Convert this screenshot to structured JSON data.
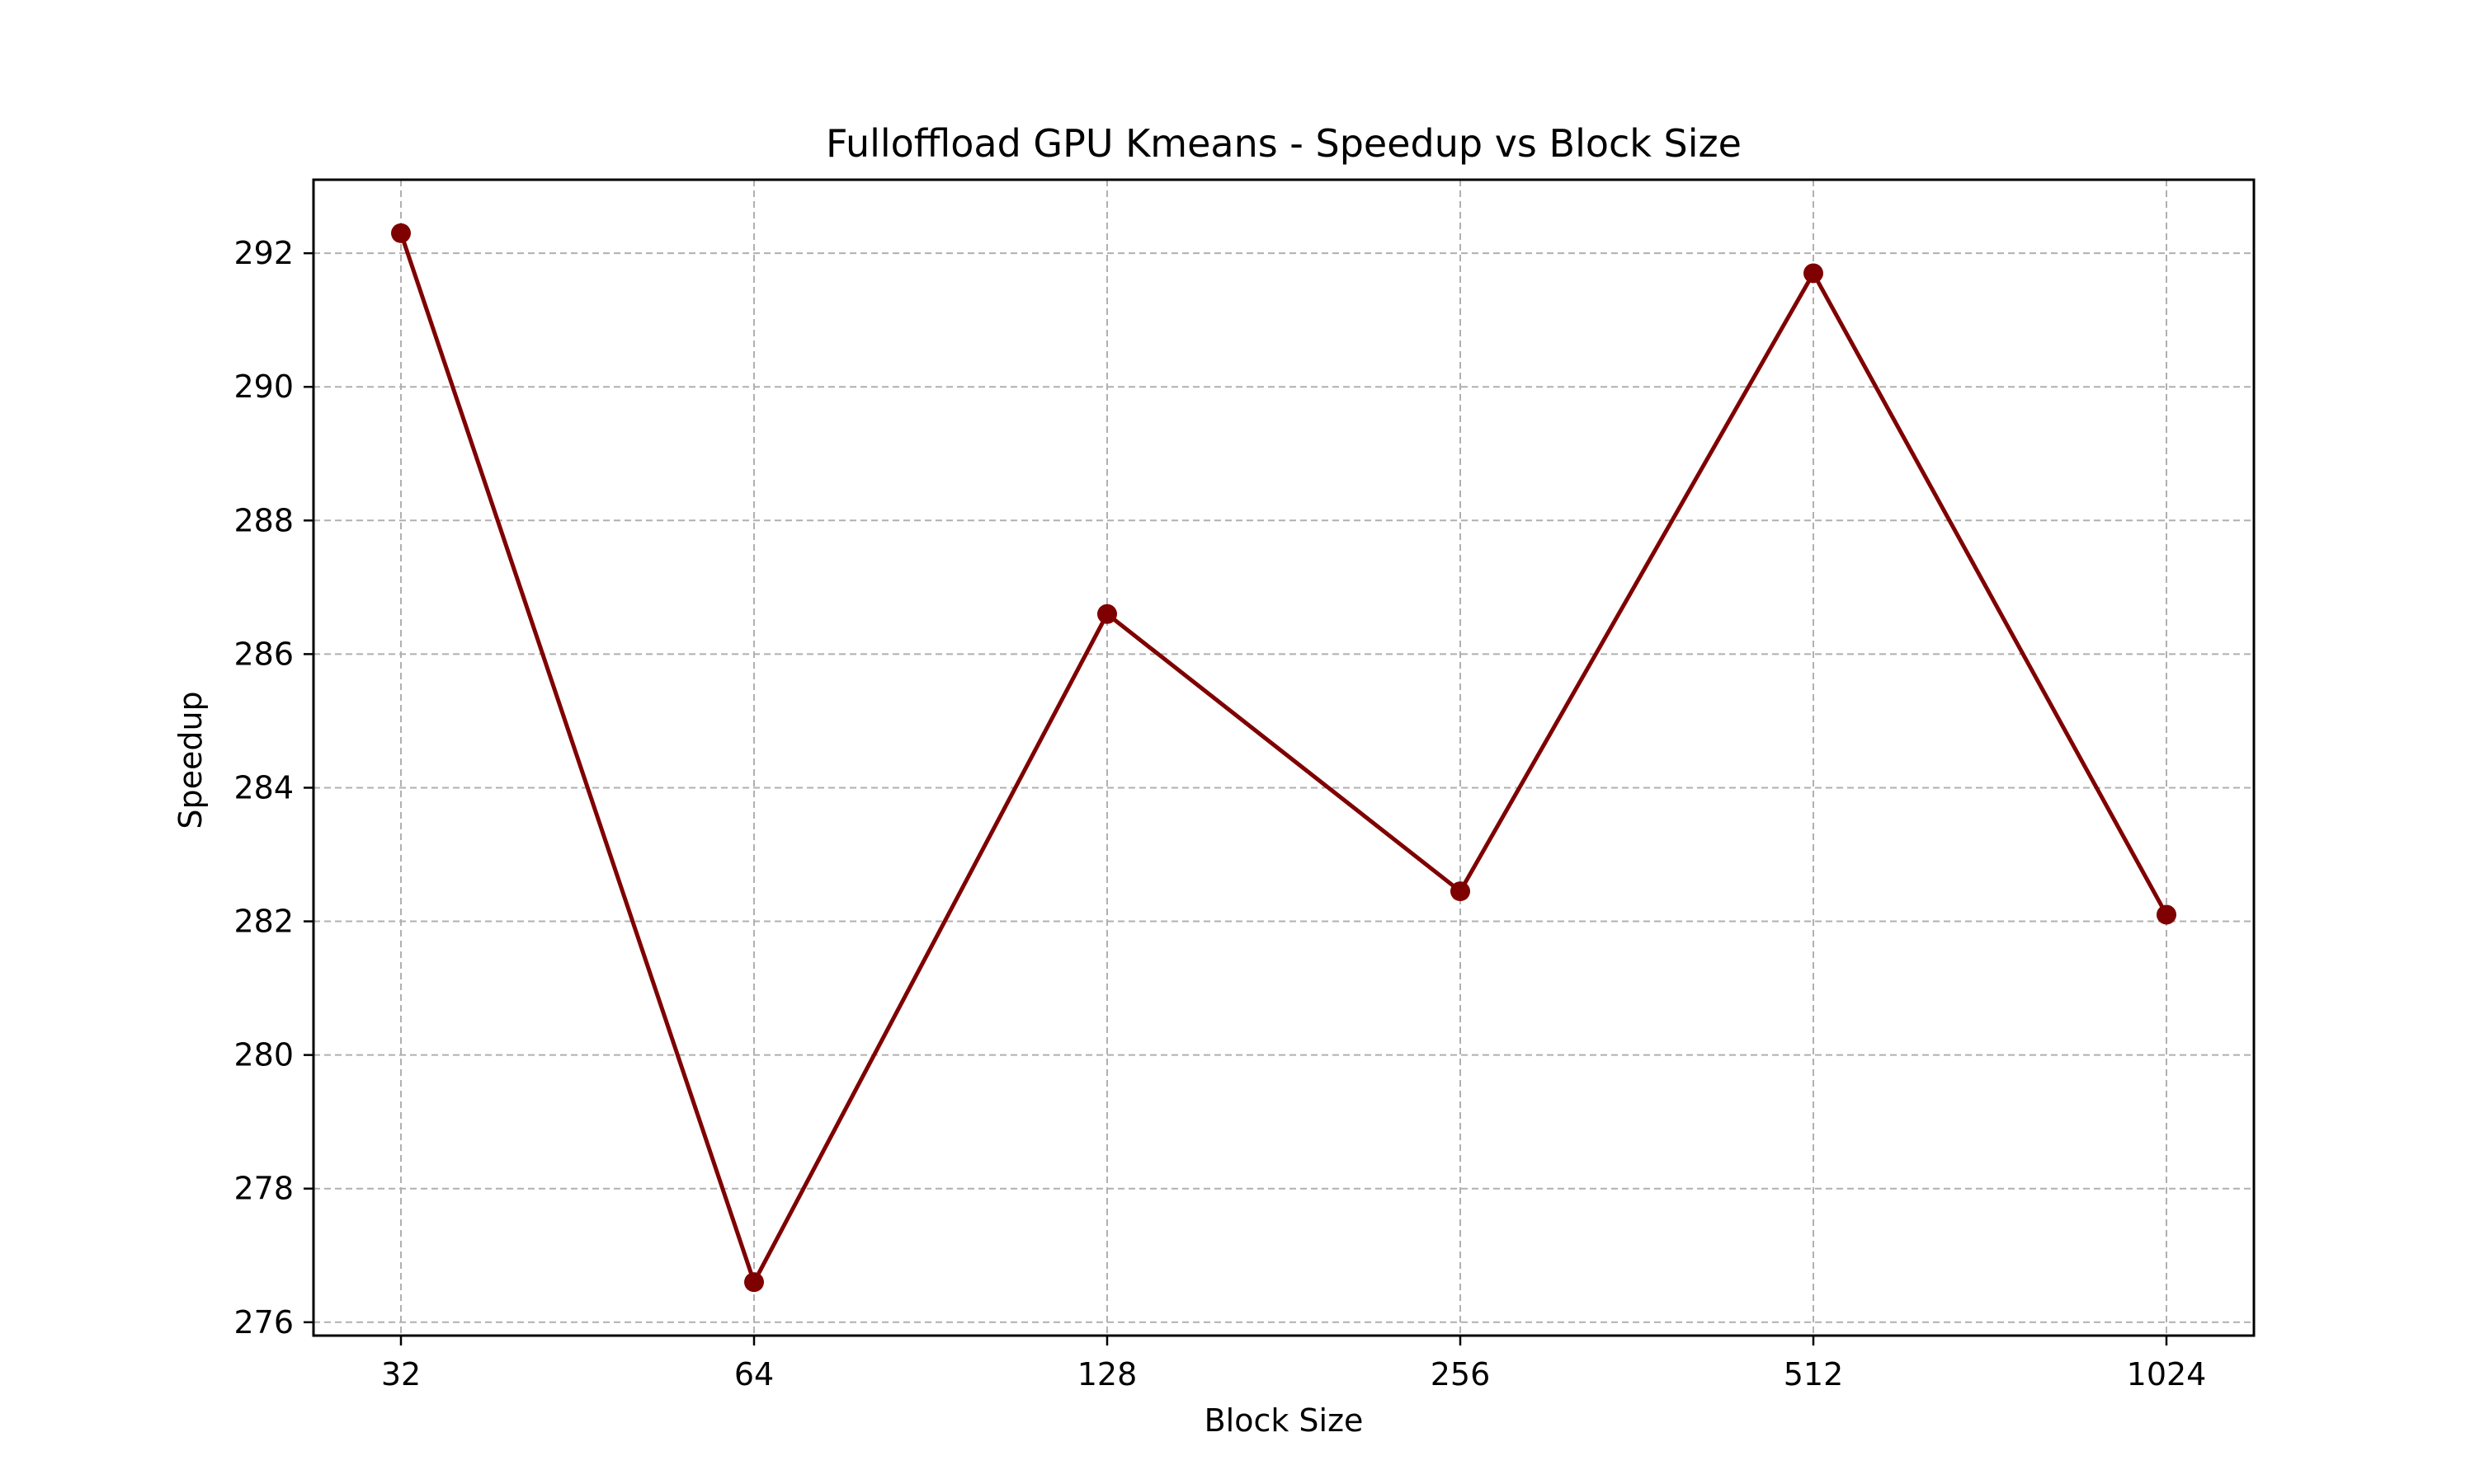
{
  "chart_data": {
    "type": "line",
    "title": "Fulloffload GPU Kmeans - Speedup vs Block Size",
    "xlabel": "Block Size",
    "ylabel": "Speedup",
    "categories": [
      "32",
      "64",
      "128",
      "256",
      "512",
      "1024"
    ],
    "series": [
      {
        "values": [
          292.3,
          276.6,
          286.6,
          282.45,
          291.7,
          282.1
        ],
        "color": "#7f0000",
        "marker": "circle"
      }
    ],
    "yticks": [
      "276",
      "278",
      "280",
      "282",
      "284",
      "286",
      "288",
      "290",
      "292"
    ],
    "ylim": [
      275.8,
      293.1
    ],
    "grid": true
  }
}
